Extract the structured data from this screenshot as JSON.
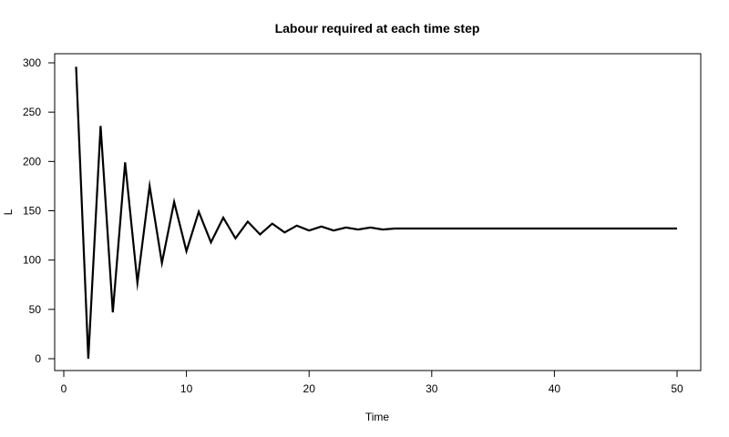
{
  "chart_data": {
    "type": "line",
    "title": "Labour required at each time step",
    "xlabel": "Time",
    "ylabel": "L",
    "xlim": [
      0,
      50
    ],
    "ylim": [
      0,
      300
    ],
    "xticks": [
      0,
      10,
      20,
      30,
      40,
      50
    ],
    "yticks": [
      0,
      50,
      100,
      150,
      200,
      250,
      300
    ],
    "grid": false,
    "legend": "none",
    "series": [
      {
        "color": "#000000",
        "x": [
          1,
          2,
          3,
          4,
          5,
          6,
          7,
          8,
          9,
          10,
          11,
          12,
          13,
          14,
          15,
          16,
          17,
          18,
          19,
          20,
          21,
          22,
          23,
          24,
          25,
          26,
          27,
          28,
          29,
          30,
          31,
          32,
          33,
          34,
          35,
          36,
          37,
          38,
          39,
          40,
          41,
          42,
          43,
          44,
          45,
          46,
          47,
          48,
          49,
          50
        ],
        "y": [
          296,
          0,
          236,
          47,
          199,
          77,
          175,
          97,
          159,
          109,
          149,
          118,
          143,
          122,
          139,
          126,
          137,
          128,
          135,
          130,
          134,
          130,
          133,
          131,
          133,
          131,
          132,
          132,
          132,
          132,
          132,
          132,
          132,
          132,
          132,
          132,
          132,
          132,
          132,
          132,
          132,
          132,
          132,
          132,
          132,
          132,
          132,
          132,
          132,
          132
        ]
      }
    ]
  }
}
